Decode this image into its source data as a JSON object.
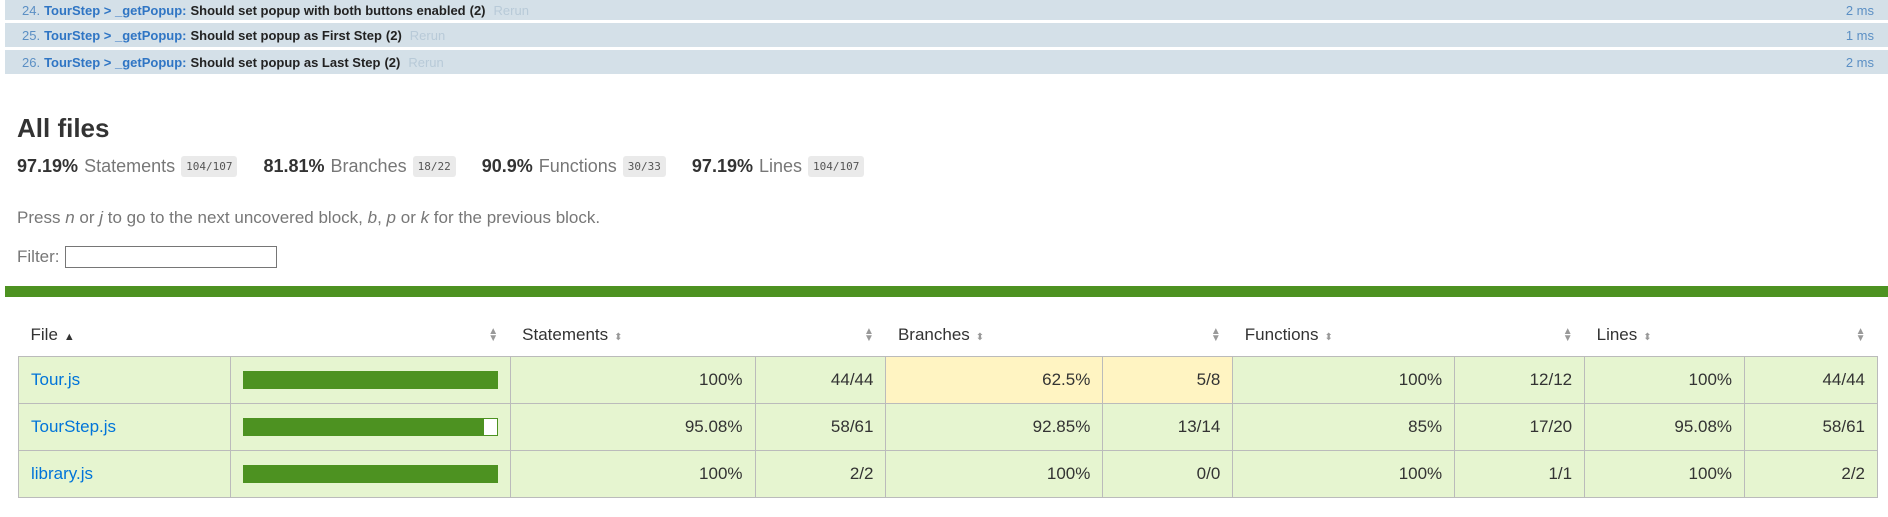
{
  "tests": [
    {
      "idx": "24.",
      "suite": "TourStep > _getPopup:",
      "name": "Should set popup with both buttons enabled",
      "count": "(2)",
      "rerun": "Rerun",
      "duration": "2 ms"
    },
    {
      "idx": "25.",
      "suite": "TourStep > _getPopup:",
      "name": "Should set popup as First Step",
      "count": "(2)",
      "rerun": "Rerun",
      "duration": "1 ms"
    },
    {
      "idx": "26.",
      "suite": "TourStep > _getPopup:",
      "name": "Should set popup as Last Step",
      "count": "(2)",
      "rerun": "Rerun",
      "duration": "2 ms"
    }
  ],
  "coverage": {
    "title": "All files",
    "summary": [
      {
        "pct": "97.19%",
        "label": "Statements",
        "frac": "104/107"
      },
      {
        "pct": "81.81%",
        "label": "Branches",
        "frac": "18/22"
      },
      {
        "pct": "90.9%",
        "label": "Functions",
        "frac": "30/33"
      },
      {
        "pct": "97.19%",
        "label": "Lines",
        "frac": "104/107"
      }
    ],
    "hint": {
      "press": "Press ",
      "n": "n",
      "or1": " or ",
      "j": "j",
      "mid": " to go to the next uncovered block, ",
      "b": "b",
      "comma": ", ",
      "p": "p",
      "or2": " or ",
      "k": "k",
      "end": " for the previous block."
    },
    "filter_label": "Filter:",
    "filter_value": "",
    "colors": {
      "high": "#e6f5d0",
      "medium": "#fff4c2",
      "bar": "#4d9221"
    }
  },
  "table": {
    "headers": {
      "file": "File",
      "statements": "Statements",
      "branches": "Branches",
      "functions": "Functions",
      "lines": "Lines"
    },
    "rows": [
      {
        "file": "Tour.js",
        "bar_fraction": 1.0,
        "stmt_pct": "100%",
        "stmt_frac": "44/44",
        "br_pct": "62.5%",
        "br_frac": "5/8",
        "br_level": "medium",
        "fn_pct": "100%",
        "fn_frac": "12/12",
        "ln_pct": "100%",
        "ln_frac": "44/44"
      },
      {
        "file": "TourStep.js",
        "bar_fraction": 0.9508,
        "stmt_pct": "95.08%",
        "stmt_frac": "58/61",
        "br_pct": "92.85%",
        "br_frac": "13/14",
        "br_level": "high",
        "fn_pct": "85%",
        "fn_frac": "17/20",
        "ln_pct": "95.08%",
        "ln_frac": "58/61"
      },
      {
        "file": "library.js",
        "bar_fraction": 1.0,
        "stmt_pct": "100%",
        "stmt_frac": "2/2",
        "br_pct": "100%",
        "br_frac": "0/0",
        "br_level": "high",
        "fn_pct": "100%",
        "fn_frac": "1/1",
        "ln_pct": "100%",
        "ln_frac": "2/2"
      }
    ]
  }
}
